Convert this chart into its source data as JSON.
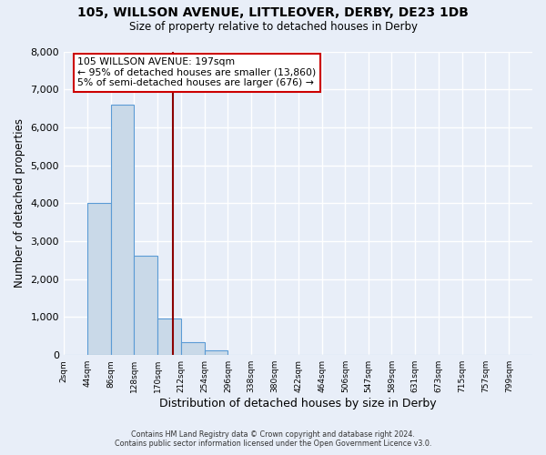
{
  "title": "105, WILLSON AVENUE, LITTLEOVER, DERBY, DE23 1DB",
  "subtitle": "Size of property relative to detached houses in Derby",
  "xlabel": "Distribution of detached houses by size in Derby",
  "ylabel": "Number of detached properties",
  "bin_edges": [
    2,
    44,
    86,
    128,
    170,
    212,
    254,
    296,
    338,
    380,
    422,
    464,
    506,
    547,
    589,
    631,
    673,
    715,
    757,
    799,
    841
  ],
  "bin_counts": [
    0,
    4000,
    6600,
    2620,
    960,
    330,
    120,
    0,
    0,
    0,
    0,
    0,
    0,
    0,
    0,
    0,
    0,
    0,
    0,
    0
  ],
  "bar_color": "#c9d9e8",
  "bar_edge_color": "#5b9bd5",
  "vline_color": "#8b0000",
  "vline_x": 197,
  "annotation_title": "105 WILLSON AVENUE: 197sqm",
  "annotation_line1": "← 95% of detached houses are smaller (13,860)",
  "annotation_line2": "5% of semi-detached houses are larger (676) →",
  "annotation_box_color": "#ffffff",
  "annotation_box_edge": "#cc0000",
  "ylim": [
    0,
    8000
  ],
  "yticks": [
    0,
    1000,
    2000,
    3000,
    4000,
    5000,
    6000,
    7000,
    8000
  ],
  "background_color": "#e8eef8",
  "grid_color": "#ffffff",
  "footer1": "Contains HM Land Registry data © Crown copyright and database right 2024.",
  "footer2": "Contains public sector information licensed under the Open Government Licence v3.0."
}
